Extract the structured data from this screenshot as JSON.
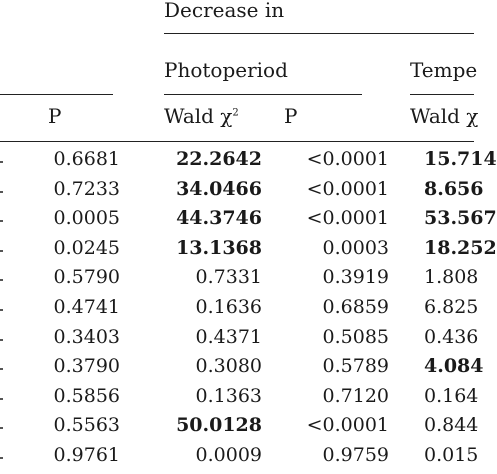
{
  "headers": {
    "group": "Decrease in",
    "sub1": "Photoperiod",
    "sub2": "Tempe",
    "col_p1": "P",
    "col_wald1": "Wald χ",
    "col_wald1_sup": "2",
    "col_p2": "P",
    "col_wald2": "Wald χ"
  },
  "rows": [
    {
      "p1": "0.6681",
      "wald": "22.2642",
      "wald_bold": true,
      "p2": "<0.0001",
      "wald2": "15.714",
      "wald2_bold": true
    },
    {
      "p1": "0.7233",
      "wald": "34.0466",
      "wald_bold": true,
      "p2": "<0.0001",
      "wald2": "8.656",
      "wald2_bold": true
    },
    {
      "p1": "0.0005",
      "wald": "44.3746",
      "wald_bold": true,
      "p2": "<0.0001",
      "wald2": "53.567",
      "wald2_bold": true
    },
    {
      "p1": "0.0245",
      "wald": "13.1368",
      "wald_bold": true,
      "p2": "0.0003",
      "wald2": "18.252",
      "wald2_bold": true
    },
    {
      "p1": "0.5790",
      "wald": "0.7331",
      "wald_bold": false,
      "p2": "0.3919",
      "wald2": "1.808",
      "wald2_bold": false
    },
    {
      "p1": "0.4741",
      "wald": "0.1636",
      "wald_bold": false,
      "p2": "0.6859",
      "wald2": "6.825",
      "wald2_bold": false
    },
    {
      "p1": "0.3403",
      "wald": "0.4371",
      "wald_bold": false,
      "p2": "0.5085",
      "wald2": "0.436",
      "wald2_bold": false
    },
    {
      "p1": "0.3790",
      "wald": "0.3080",
      "wald_bold": false,
      "p2": "0.5789",
      "wald2": "4.084",
      "wald2_bold": true
    },
    {
      "p1": "0.5856",
      "wald": "0.1363",
      "wald_bold": false,
      "p2": "0.7120",
      "wald2": "0.164",
      "wald2_bold": false
    },
    {
      "p1": "0.5563",
      "wald": "50.0128",
      "wald_bold": true,
      "p2": "<0.0001",
      "wald2": "0.844",
      "wald2_bold": false
    },
    {
      "p1": "0.9761",
      "wald": "0.0009",
      "wald_bold": false,
      "p2": "0.9759",
      "wald2": "0.015",
      "wald2_bold": false
    }
  ]
}
